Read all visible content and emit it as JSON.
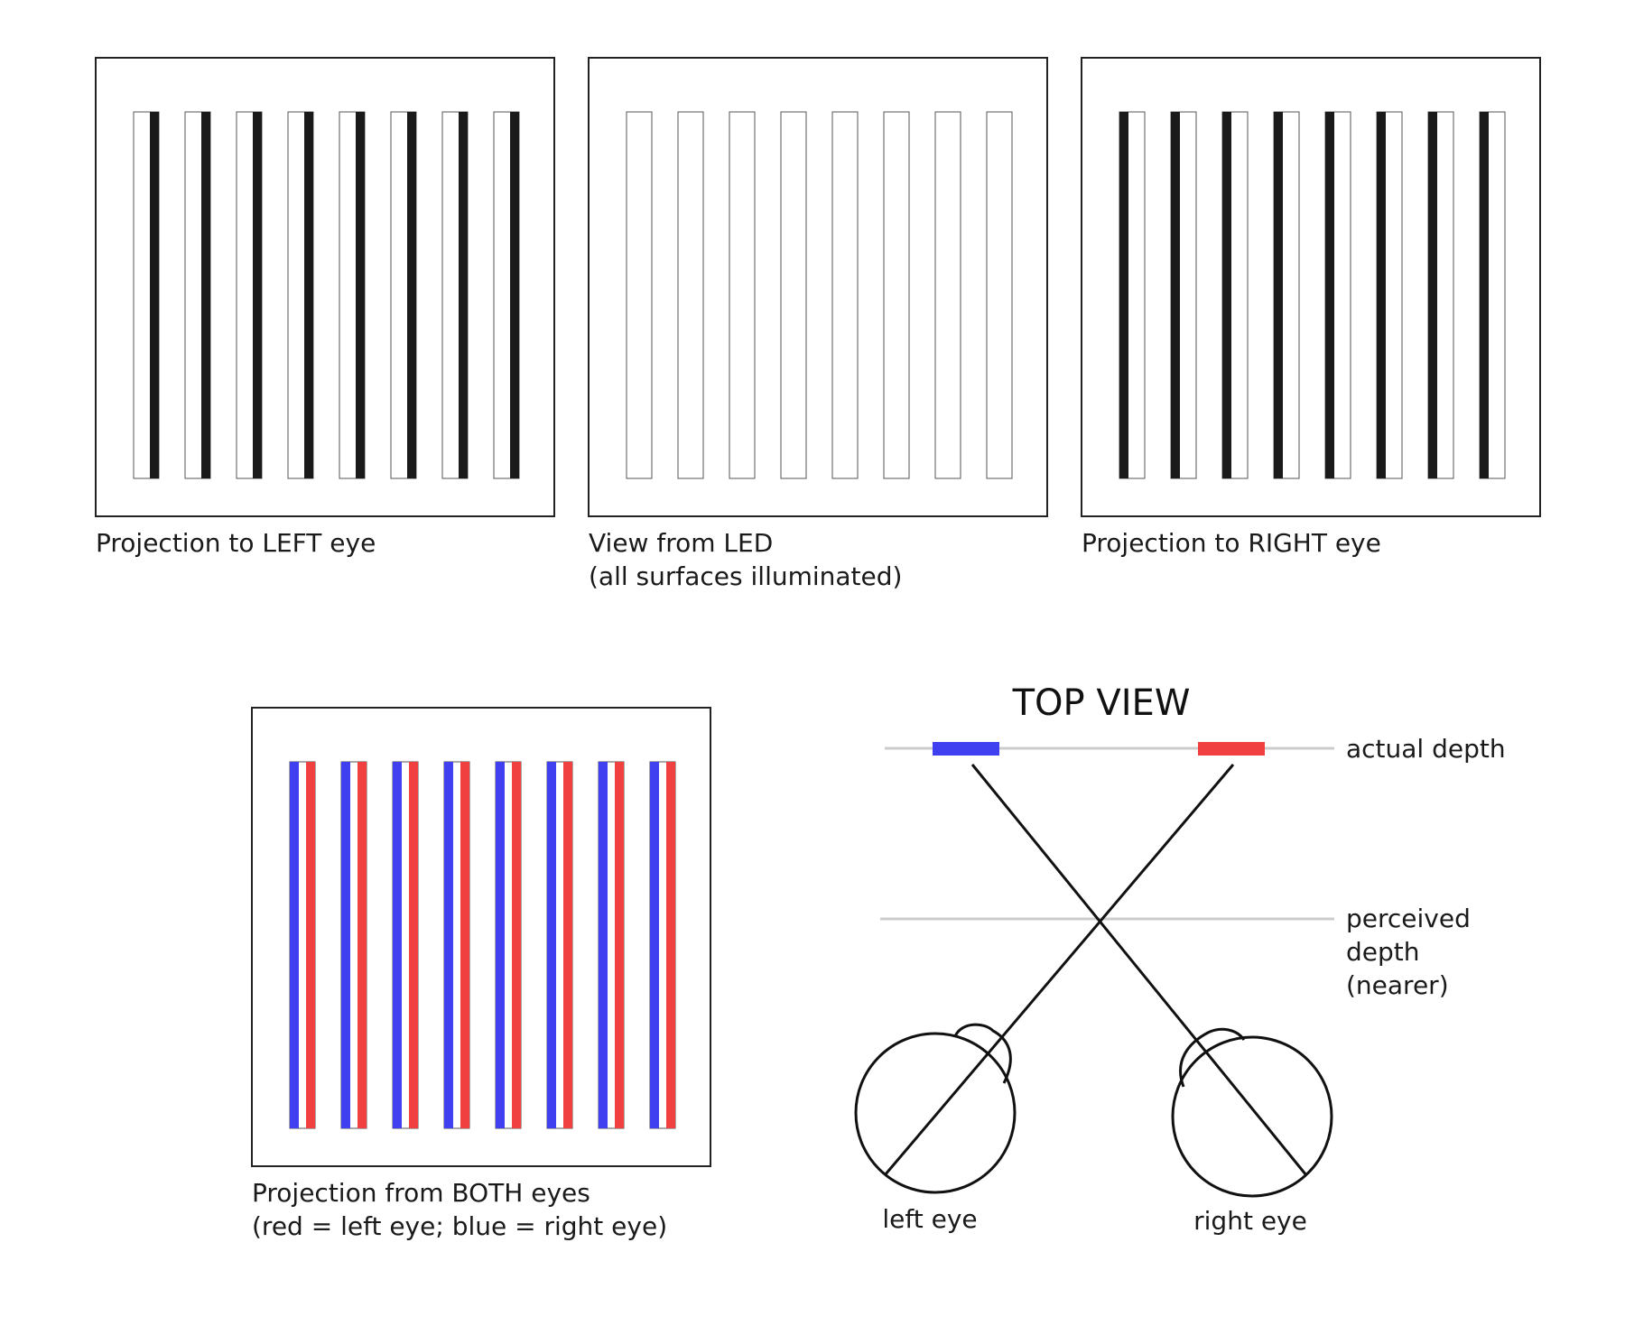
{
  "panels": [
    {
      "id": "left-eye-projection",
      "caption": [
        "Projection to LEFT eye"
      ],
      "shading": "right"
    },
    {
      "id": "led-view",
      "caption": [
        "View from LED",
        "(all surfaces illuminated)"
      ],
      "shading": "none"
    },
    {
      "id": "right-eye-projection",
      "caption": [
        "Projection to RIGHT eye"
      ],
      "shading": "left"
    },
    {
      "id": "both-eyes-projection",
      "caption": [
        "Projection from BOTH eyes",
        "(red = left eye; blue = right eye)"
      ],
      "shading": "both"
    }
  ],
  "strip_count": 8,
  "top_view": {
    "title": "TOP VIEW",
    "actual_depth_label": "actual depth",
    "perceived_depth_label": [
      "perceived",
      "depth",
      "(nearer)"
    ],
    "left_eye_label": "left eye",
    "right_eye_label": "right eye"
  },
  "colors": {
    "blue": "#4040f0",
    "red": "#f04040",
    "black": "#1a1a1a",
    "gray_line": "#cccccc"
  }
}
